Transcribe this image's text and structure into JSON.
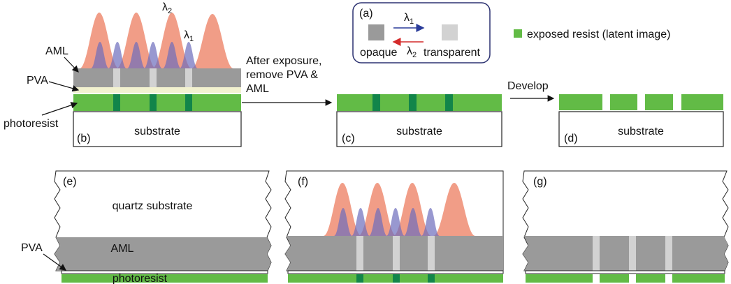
{
  "legend_box": {
    "label": "(a)",
    "lambda_forward": {
      "symbol": "λ",
      "subscript": "1"
    },
    "lambda_back": {
      "symbol": "λ",
      "subscript": "2"
    },
    "opaque": "opaque",
    "transparent": "transparent"
  },
  "key": {
    "label": "exposed resist (latent image)"
  },
  "panel_b": {
    "label": "(b)",
    "lambda_2": {
      "symbol": "λ",
      "subscript": "2"
    },
    "lambda_1": {
      "symbol": "λ",
      "subscript": "1"
    },
    "aml": "AML",
    "pva": "PVA",
    "photoresist": "photoresist",
    "substrate": "substrate"
  },
  "step_1": {
    "lines": [
      "After exposure,",
      "remove PVA &",
      "AML"
    ]
  },
  "panel_c": {
    "label": "(c)",
    "substrate": "substrate"
  },
  "step_2": {
    "label": "Develop"
  },
  "panel_d": {
    "label": "(d)",
    "substrate": "substrate"
  },
  "panel_e": {
    "label": "(e)",
    "quartz": "quartz substrate",
    "aml": "AML",
    "pva": "PVA",
    "photoresist": "photoresist"
  },
  "panel_f": {
    "label": "(f)"
  },
  "panel_g": {
    "label": "(g)"
  }
}
